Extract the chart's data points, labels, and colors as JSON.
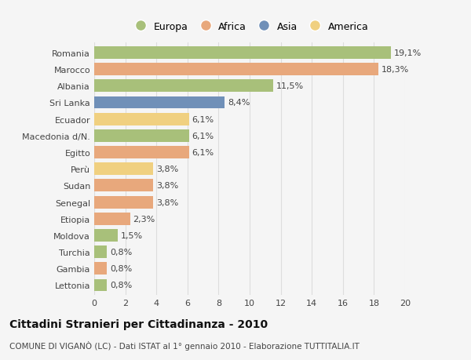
{
  "categories": [
    "Lettonia",
    "Gambia",
    "Turchia",
    "Moldova",
    "Etiopia",
    "Senegal",
    "Sudan",
    "Perù",
    "Egitto",
    "Macedonia d/N.",
    "Ecuador",
    "Sri Lanka",
    "Albania",
    "Marocco",
    "Romania"
  ],
  "values": [
    0.8,
    0.8,
    0.8,
    1.5,
    2.3,
    3.8,
    3.8,
    3.8,
    6.1,
    6.1,
    6.1,
    8.4,
    11.5,
    18.3,
    19.1
  ],
  "labels": [
    "0,8%",
    "0,8%",
    "0,8%",
    "1,5%",
    "2,3%",
    "3,8%",
    "3,8%",
    "3,8%",
    "6,1%",
    "6,1%",
    "6,1%",
    "8,4%",
    "11,5%",
    "18,3%",
    "19,1%"
  ],
  "colors": [
    "#a8c07a",
    "#e8a87c",
    "#a8c07a",
    "#a8c07a",
    "#e8a87c",
    "#e8a87c",
    "#e8a87c",
    "#f0d080",
    "#e8a87c",
    "#a8c07a",
    "#f0d080",
    "#7090b8",
    "#a8c07a",
    "#e8a87c",
    "#a8c07a"
  ],
  "legend_labels": [
    "Europa",
    "Africa",
    "Asia",
    "America"
  ],
  "legend_colors": [
    "#a8c07a",
    "#e8a87c",
    "#7090b8",
    "#f0d080"
  ],
  "title": "Cittadini Stranieri per Cittadinanza - 2010",
  "subtitle": "COMUNE DI VIGANÒ (LC) - Dati ISTAT al 1° gennaio 2010 - Elaborazione TUTTITALIA.IT",
  "xlim": [
    0,
    20
  ],
  "xticks": [
    0,
    2,
    4,
    6,
    8,
    10,
    12,
    14,
    16,
    18,
    20
  ],
  "background_color": "#f5f5f5",
  "grid_color": "#dddddd",
  "bar_height": 0.75,
  "label_fontsize": 8,
  "ytick_fontsize": 8,
  "xtick_fontsize": 8,
  "legend_fontsize": 9,
  "title_fontsize": 10,
  "subtitle_fontsize": 7.5
}
